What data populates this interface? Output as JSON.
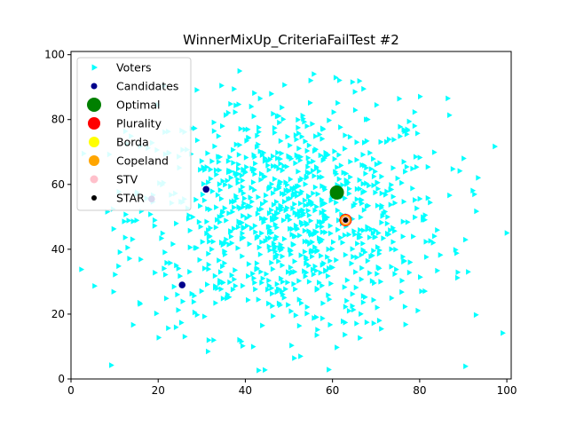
{
  "chart_data": {
    "type": "scatter",
    "title": "WinnerMixUp_CriteriaFailTest #2",
    "xlabel": "",
    "ylabel": "",
    "xlim": [
      0,
      101
    ],
    "ylim": [
      0,
      101
    ],
    "x_ticks": [
      0,
      20,
      40,
      60,
      80,
      100
    ],
    "y_ticks": [
      0,
      20,
      40,
      60,
      80,
      100
    ],
    "grid": false,
    "legend_position": "top-left",
    "voters": {
      "name": "Voters",
      "color": "#00ffff",
      "marker": "triangle-right",
      "count": 1000,
      "center": [
        50,
        50
      ],
      "spread": 18
    },
    "candidates": {
      "name": "Candidates",
      "color": "#00008b",
      "marker": "circle",
      "points": [
        [
          18.5,
          55.5
        ],
        [
          31,
          58.5
        ],
        [
          63,
          49
        ],
        [
          25.5,
          29
        ]
      ]
    },
    "winners": [
      {
        "name": "Optimal",
        "color": "#008000",
        "x": 61,
        "y": 57.5,
        "size": 16
      },
      {
        "name": "Plurality",
        "color": "#ff0000",
        "x": 63,
        "y": 49,
        "size": 14
      },
      {
        "name": "Borda",
        "color": "#ffff00",
        "x": 63,
        "y": 49,
        "size": 12
      },
      {
        "name": "Copeland",
        "color": "#ffa500",
        "x": 63,
        "y": 49,
        "size": 12
      },
      {
        "name": "STV",
        "color": "#ffc0cb",
        "x": 63,
        "y": 49,
        "size": 9
      },
      {
        "name": "STAR",
        "color": "#000000",
        "x": 63,
        "y": 49,
        "size": 6
      }
    ]
  }
}
